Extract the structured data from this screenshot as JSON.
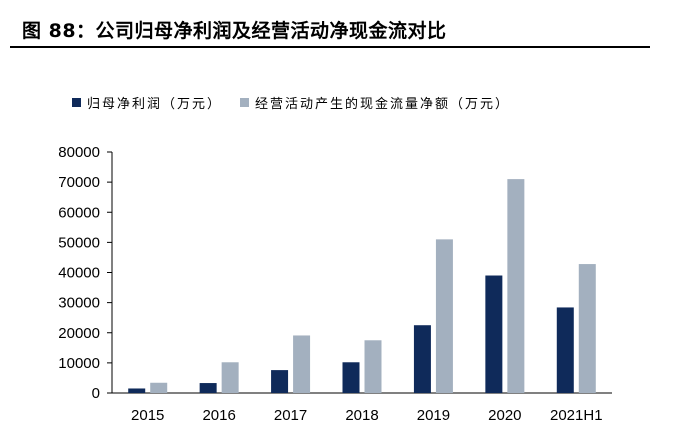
{
  "title": "图 88：公司归母净利润及经营活动净现金流对比",
  "colors": {
    "series1": "#0f2a5a",
    "series2": "#a3b0bf",
    "axis": "#000000"
  },
  "chart_data": {
    "type": "bar",
    "categories": [
      "2015",
      "2016",
      "2017",
      "2018",
      "2019",
      "2020",
      "2021H1"
    ],
    "series": [
      {
        "name": "归母净利润（万元）",
        "values": [
          1500,
          3300,
          7600,
          10200,
          22500,
          39000,
          28400
        ]
      },
      {
        "name": "经营活动产生的现金流量净额（万元）",
        "values": [
          3400,
          10200,
          19100,
          17500,
          51000,
          71000,
          42800
        ]
      }
    ],
    "yticks": [
      0,
      10000,
      20000,
      30000,
      40000,
      50000,
      60000,
      70000,
      80000
    ],
    "ylim": [
      0,
      80000
    ],
    "grid": false,
    "legend": "top-left"
  }
}
